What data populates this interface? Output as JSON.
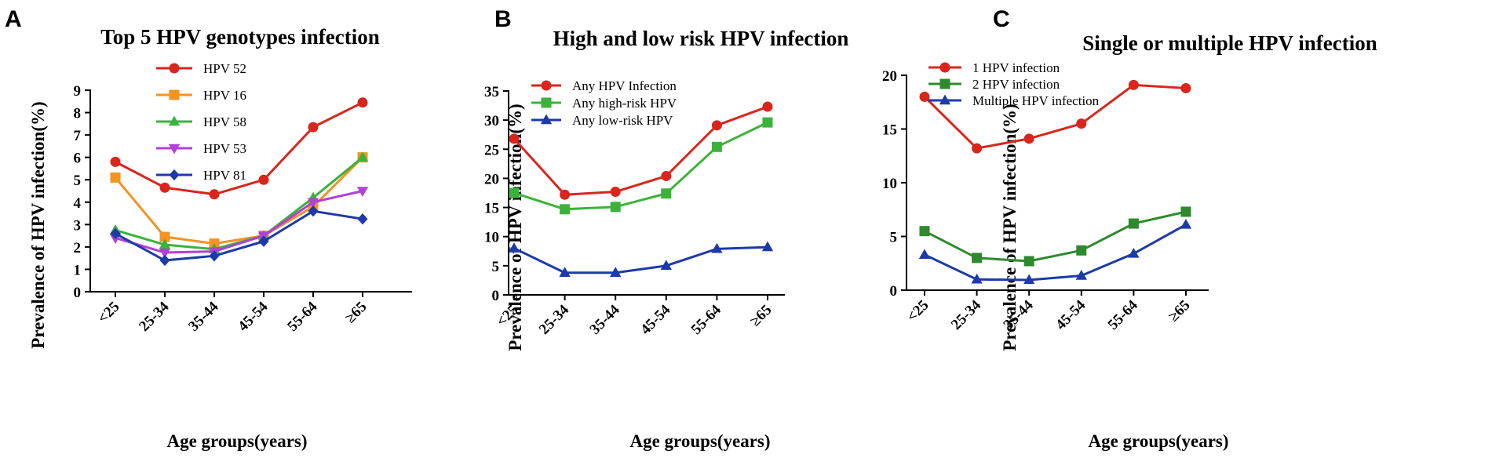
{
  "chart_data": [
    {
      "panel": "A",
      "type": "line",
      "title": "Top 5 HPV genotypes infection",
      "xlabel": "Age groups(years)",
      "ylabel": "Prevalence of HPV infection(%)",
      "categories": [
        "<25",
        "25-34",
        "35-44",
        "45-54",
        "55-64",
        "≥65"
      ],
      "ylim": [
        0,
        9
      ],
      "yticks": [
        "0",
        "1",
        "2",
        "3",
        "4",
        "5",
        "6",
        "7",
        "8",
        "9"
      ],
      "legend_position": "top-left",
      "series": [
        {
          "name": "HPV 52",
          "color": "#d9251c",
          "marker": "circle",
          "values": [
            5.8,
            4.65,
            4.35,
            5.0,
            7.35,
            8.45
          ]
        },
        {
          "name": "HPV 16",
          "color": "#f39322",
          "marker": "square",
          "values": [
            5.1,
            2.45,
            2.15,
            2.5,
            3.8,
            6.0
          ]
        },
        {
          "name": "HPV 58",
          "color": "#3bb33b",
          "marker": "triangle-up",
          "values": [
            2.75,
            2.1,
            1.9,
            2.5,
            4.2,
            6.0
          ]
        },
        {
          "name": "HPV 53",
          "color": "#b23fd9",
          "marker": "triangle-down",
          "values": [
            2.4,
            1.75,
            1.8,
            2.5,
            4.0,
            4.5
          ]
        },
        {
          "name": "HPV 81",
          "color": "#1c3aa9",
          "marker": "diamond",
          "values": [
            2.6,
            1.4,
            1.6,
            2.25,
            3.6,
            3.25
          ]
        }
      ]
    },
    {
      "panel": "B",
      "type": "line",
      "title": "High and low risk HPV infection",
      "xlabel": "Age groups(years)",
      "ylabel": "Prevalence of HPV infection(%)",
      "categories": [
        "<25",
        "25-34",
        "35-44",
        "45-54",
        "55-64",
        "≥65"
      ],
      "ylim": [
        0,
        35
      ],
      "yticks": [
        "0",
        "5",
        "10",
        "15",
        "20",
        "25",
        "30",
        "35"
      ],
      "legend_position": "top-left",
      "series": [
        {
          "name": "Any HPV Infection",
          "color": "#d9251c",
          "marker": "circle",
          "values": [
            26.8,
            17.2,
            17.7,
            20.4,
            29.1,
            32.3
          ]
        },
        {
          "name": "Any high-risk HPV",
          "color": "#3bb33b",
          "marker": "square",
          "values": [
            17.5,
            14.7,
            15.1,
            17.4,
            25.4,
            29.6
          ]
        },
        {
          "name": "Any low-risk HPV",
          "color": "#1c3aa9",
          "marker": "triangle-up",
          "values": [
            8.0,
            3.8,
            3.8,
            5.0,
            7.9,
            8.2
          ]
        }
      ]
    },
    {
      "panel": "C",
      "type": "line",
      "title": "Single or multiple HPV infection",
      "xlabel": "Age groups(years)",
      "ylabel": "Prevalence of HPV infection(%)",
      "categories": [
        "<25",
        "25-34",
        "35-44",
        "45-54",
        "55-64",
        "≥65"
      ],
      "ylim": [
        0,
        20
      ],
      "yticks": [
        "0",
        "5",
        "10",
        "15",
        "20"
      ],
      "legend_position": "top-left",
      "series": [
        {
          "name": "1 HPV infection",
          "color": "#d9251c",
          "marker": "circle",
          "values": [
            18.0,
            13.2,
            14.1,
            15.5,
            19.1,
            18.8
          ]
        },
        {
          "name": "2 HPV infection",
          "color": "#2d8a2d",
          "marker": "square",
          "values": [
            5.5,
            3.0,
            2.7,
            3.7,
            6.2,
            7.3
          ]
        },
        {
          "name": "Multiple HPV infection",
          "color": "#1c3aa9",
          "marker": "triangle-up",
          "values": [
            3.3,
            1.0,
            0.95,
            1.35,
            3.4,
            6.1
          ]
        }
      ]
    }
  ]
}
